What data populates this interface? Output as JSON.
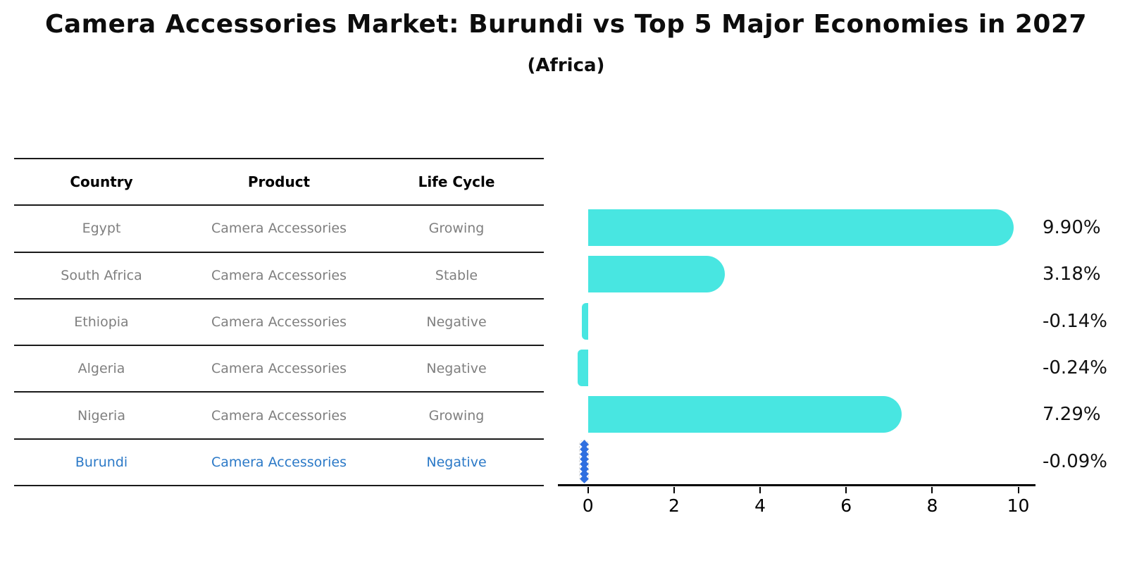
{
  "title": "Camera Accessories Market: Burundi vs Top 5 Major Economies in 2027",
  "subtitle": "(Africa)",
  "table": {
    "columns": [
      "Country",
      "Product",
      "Life Cycle"
    ],
    "rows": [
      {
        "country": "Egypt",
        "product": "Camera Accessories",
        "life_cycle": "Growing",
        "highlight": false
      },
      {
        "country": "South Africa",
        "product": "Camera Accessories",
        "life_cycle": "Stable",
        "highlight": false
      },
      {
        "country": "Ethiopia",
        "product": "Camera Accessories",
        "life_cycle": "Negative",
        "highlight": false
      },
      {
        "country": "Algeria",
        "product": "Camera Accessories",
        "life_cycle": "Negative",
        "highlight": false
      },
      {
        "country": "Nigeria",
        "product": "Camera Accessories",
        "life_cycle": "Growing",
        "highlight": false
      },
      {
        "country": "Burundi",
        "product": "Camera Accessories",
        "life_cycle": "Negative",
        "highlight": true
      }
    ]
  },
  "chart_data": {
    "type": "bar",
    "orientation": "horizontal",
    "title": "Camera Accessories Market: Burundi vs Top 5 Major Economies in 2027 (Africa)",
    "categories": [
      "Egypt",
      "South Africa",
      "Ethiopia",
      "Algeria",
      "Nigeria",
      "Burundi"
    ],
    "values": [
      9.9,
      3.18,
      -0.14,
      -0.24,
      7.29,
      -0.09
    ],
    "value_labels": [
      "9.90%",
      "3.18%",
      "-0.14%",
      "-0.24%",
      "7.29%",
      "-0.09%"
    ],
    "xticks": [
      0,
      2,
      4,
      6,
      8,
      10
    ],
    "xtick_labels": [
      "0",
      "2",
      "4",
      "6",
      "8",
      "10"
    ],
    "xlim": [
      -0.7,
      10.4
    ],
    "grid": false,
    "legend": false,
    "bar_color": "#48e6e1",
    "highlight_index": 5,
    "highlight_marker": "dotted-diamond-line",
    "highlight_marker_color": "#2f6fe0"
  },
  "colors": {
    "background": "#ffffff",
    "bar_cyan": "#48e6e1",
    "highlight_text_blue": "#2b79c7",
    "highlight_marker_blue": "#2f6fe0",
    "table_text_gray": "#7f7f7f",
    "header_text": "#000000",
    "rule_black": "#1a1a1a",
    "axis_black": "#000000"
  }
}
